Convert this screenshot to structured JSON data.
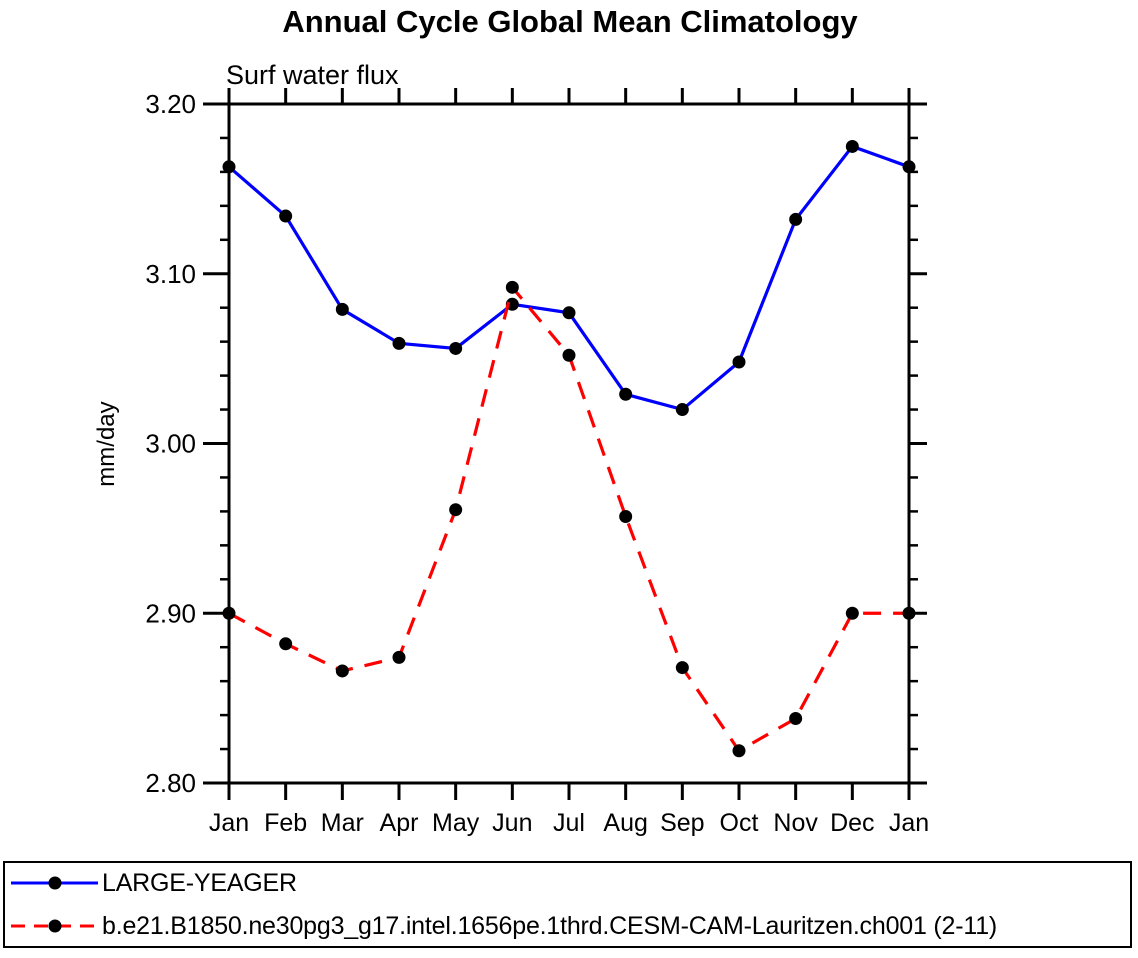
{
  "header": {
    "title": "Annual Cycle Global Mean Climatology",
    "subtitle": "Surf water flux"
  },
  "axes": {
    "y_label": "mm/day",
    "y_tick_labels": [
      "2.80",
      "2.90",
      "3.00",
      "3.10",
      "3.20"
    ],
    "x_tick_labels": [
      "Jan",
      "Feb",
      "Mar",
      "Apr",
      "May",
      "Jun",
      "Jul",
      "Aug",
      "Sep",
      "Oct",
      "Nov",
      "Dec",
      "Jan"
    ]
  },
  "colors": {
    "series1": "#0000ff",
    "series2": "#ff0000",
    "marker": "#000000",
    "axis": "#000000"
  },
  "legend": {
    "items": [
      {
        "label": "LARGE-YEAGER",
        "color": "#0000ff",
        "line_style": "solid",
        "marker": "circle"
      },
      {
        "label": "b.e21.B1850.ne30pg3_g17.intel.1656pe.1thrd.CESM-CAM-Lauritzen.ch001 (2-11)",
        "color": "#ff0000",
        "line_style": "dashed",
        "marker": "circle"
      }
    ]
  },
  "chart_data": {
    "type": "line",
    "title": "Annual Cycle Global Mean Climatology",
    "subtitle": "Surf water flux",
    "xlabel": "",
    "ylabel": "mm/day",
    "categories": [
      "Jan",
      "Feb",
      "Mar",
      "Apr",
      "May",
      "Jun",
      "Jul",
      "Aug",
      "Sep",
      "Oct",
      "Nov",
      "Dec",
      "Jan"
    ],
    "series": [
      {
        "name": "LARGE-YEAGER",
        "color": "#0000ff",
        "line_style": "solid",
        "marker": "circle",
        "marker_color": "#000000",
        "values": [
          3.163,
          3.134,
          3.079,
          3.059,
          3.056,
          3.082,
          3.077,
          3.029,
          3.02,
          3.048,
          3.132,
          3.175,
          3.163
        ]
      },
      {
        "name": "b.e21.B1850.ne30pg3_g17.intel.1656pe.1thrd.CESM-CAM-Lauritzen.ch001 (2-11)",
        "color": "#ff0000",
        "line_style": "dashed",
        "marker": "circle",
        "marker_color": "#000000",
        "values": [
          2.9,
          2.882,
          2.866,
          2.874,
          2.961,
          3.092,
          3.052,
          2.957,
          2.868,
          2.819,
          2.838,
          2.9,
          2.9
        ]
      }
    ],
    "ylim": [
      2.8,
      3.2
    ],
    "y_major_step": 0.1,
    "y_minor_step": 0.02,
    "grid": false,
    "legend_position": "bottom",
    "frame": "box-with-outward-ticks"
  }
}
